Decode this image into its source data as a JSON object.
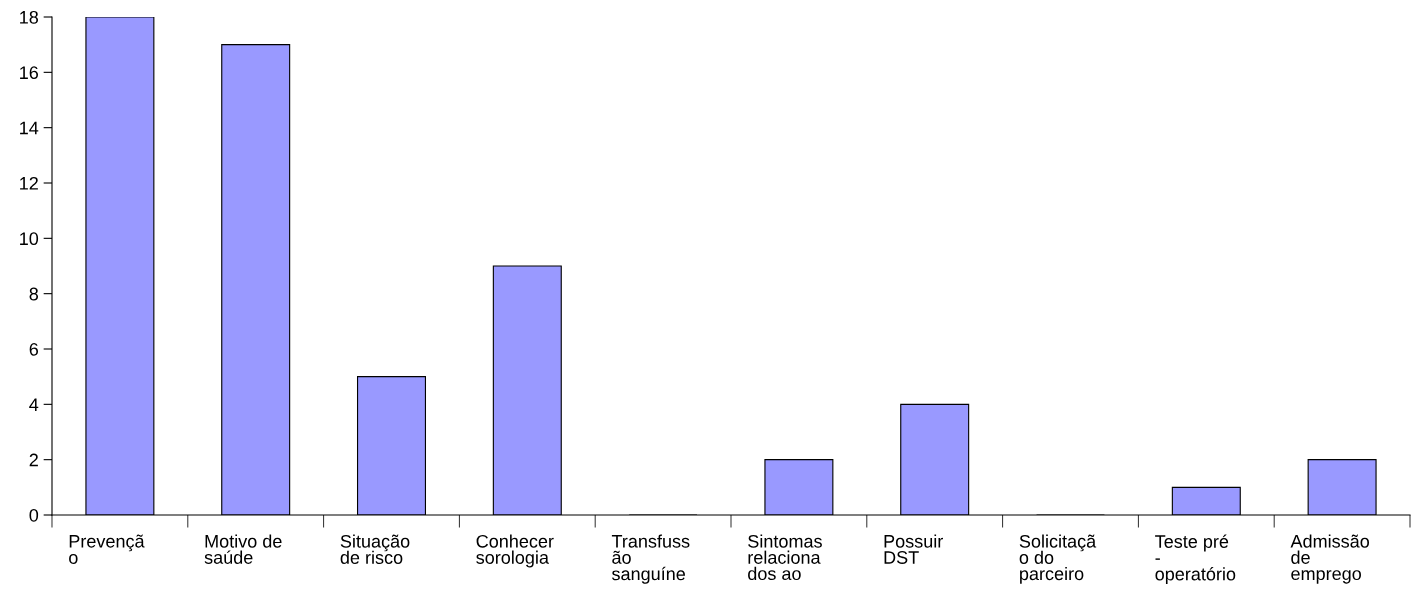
{
  "chart_data": {
    "type": "bar",
    "categories": [
      "Prevençã\no",
      "Motivo de\nsaúde",
      "Situação\nde risco",
      "Conhecer\nsorologia",
      "Transfuss\não\nsanguíne",
      "Sintomas\nrelaciona\ndos ao",
      "Possuir\nDST",
      "Solicitaçã\no do\nparceiro",
      "Teste pré\n-\noperatório",
      "Admissão\nde\nemprego"
    ],
    "values": [
      18,
      17,
      5,
      9,
      0,
      2,
      4,
      0,
      1,
      2
    ],
    "color": "#9999ff",
    "ylim": [
      0,
      18
    ],
    "yticks": [
      0,
      2,
      4,
      6,
      8,
      10,
      12,
      14,
      16,
      18
    ]
  }
}
